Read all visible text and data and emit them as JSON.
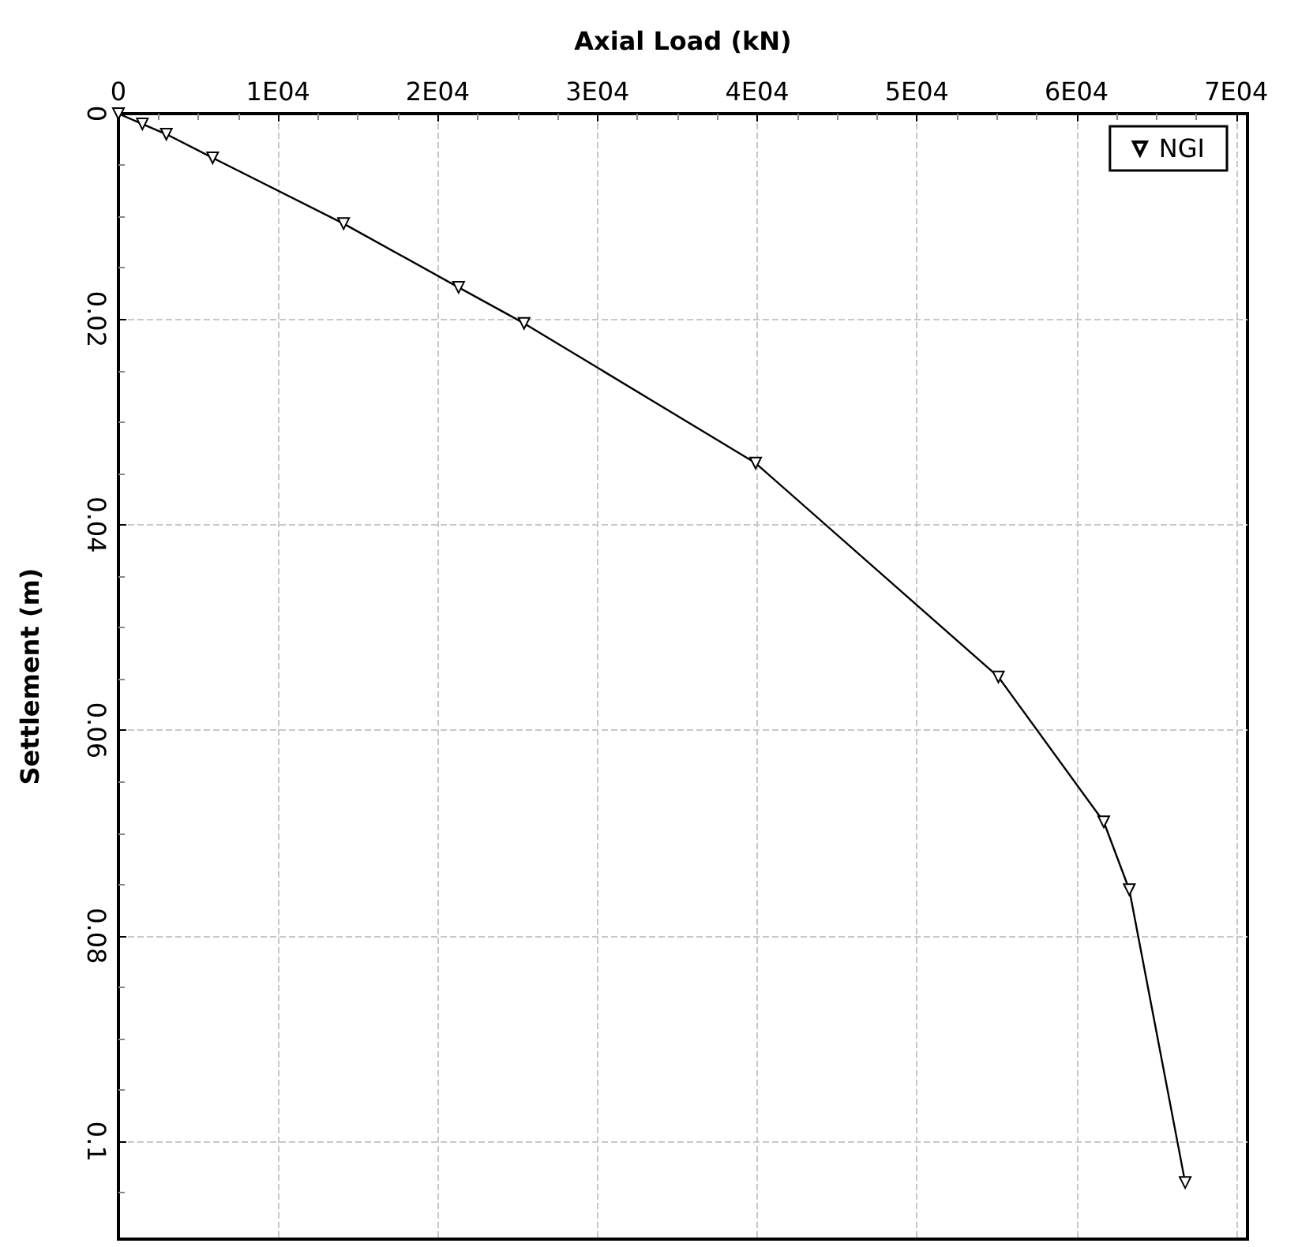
{
  "chart_data": {
    "type": "line",
    "xlabel": "Axial Load (kN)",
    "ylabel": "Settlement (m)",
    "xlim": [
      0,
      70700
    ],
    "ylim": [
      0.1095,
      0
    ],
    "xticks": [
      0,
      {
        "value": 10000,
        "label": "1E04"
      },
      {
        "value": 20000,
        "label": "2E04"
      },
      {
        "value": 30000,
        "label": "3E04"
      },
      {
        "value": 40000,
        "label": "4E04"
      },
      {
        "value": 50000,
        "label": "5E04"
      },
      {
        "value": 60000,
        "label": "6E04"
      },
      {
        "value": 70000,
        "label": "7E04"
      }
    ],
    "yticks": [
      0,
      0.02,
      0.04,
      0.06,
      0.08,
      0.1
    ],
    "grid": true,
    "legend": "top right",
    "marker": "triangle",
    "line_style": "solid",
    "series": [
      {
        "name": "NGI",
        "color": "#000000",
        "x": [
          0,
          1500,
          3000,
          5900,
          14100,
          21300,
          25400,
          39900,
          55100,
          61700,
          63300,
          66800
        ],
        "values": [
          0,
          0.001,
          0.002,
          0.0043,
          0.0107,
          0.0169,
          0.0204,
          0.034,
          0.0548,
          0.0689,
          0.0755,
          0.104
        ]
      }
    ]
  }
}
